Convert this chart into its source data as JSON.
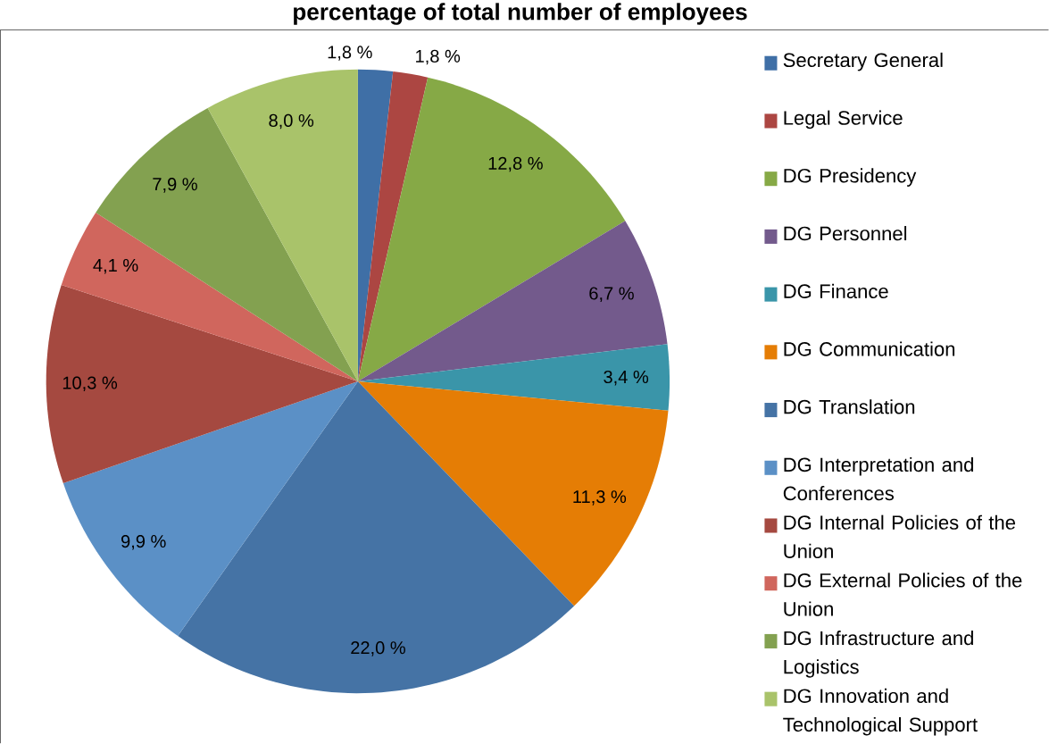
{
  "chart_data": {
    "type": "pie",
    "title": "percentage of total number of employees",
    "categories": [
      "Secretary General",
      "Legal Service",
      "DG Presidency",
      "DG Personnel",
      "DG Finance",
      "DG Communication",
      "DG Translation",
      "DG Interpretation and Conferences",
      "DG Internal Policies of the Union",
      "DG External Policies of the Union",
      "DG Infrastructure and Logistics",
      "DG Innovation and Technological Support"
    ],
    "values": [
      1.8,
      1.8,
      12.8,
      6.7,
      3.4,
      11.3,
      22.0,
      9.9,
      10.3,
      4.1,
      7.9,
      8.0
    ],
    "value_labels": [
      "1,8 %",
      "1,8 %",
      "12,8 %",
      "6,7 %",
      "3,4 %",
      "11,3 %",
      "22,0 %",
      "9,9 %",
      "10,3 %",
      "4,1 %",
      "7,9 %",
      "8,0 %"
    ],
    "colors": [
      "#3f6fa6",
      "#ac4642",
      "#86a946",
      "#735a8c",
      "#3a95a9",
      "#e57d05",
      "#4573a5",
      "#5b90c6",
      "#a54940",
      "#d0665d",
      "#83a150",
      "#a9c36a"
    ],
    "legend": "right"
  }
}
